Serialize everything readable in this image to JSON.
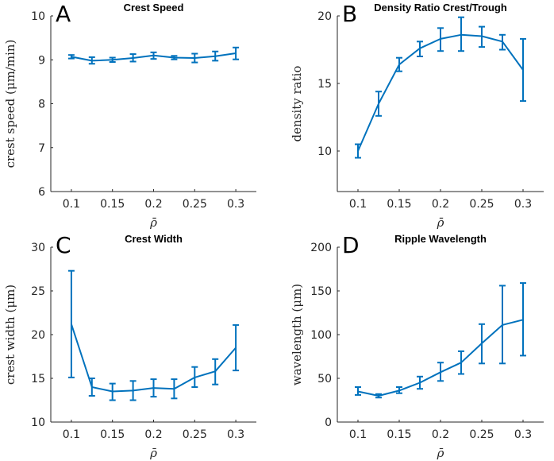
{
  "colors": {
    "series": "#0072BD",
    "axis": "#262626"
  },
  "chart_data": [
    {
      "type": "line",
      "panel_letter": "A",
      "title": "Crest Speed",
      "xlabel": "ρ̄",
      "ylabel": "crest speed (μm/min)",
      "xlim": [
        0.075,
        0.325
      ],
      "ylim": [
        6,
        10
      ],
      "xticks": [
        0.1,
        0.15,
        0.2,
        0.25,
        0.3
      ],
      "xtick_labels": [
        "0.1",
        "0.15",
        "0.2",
        "0.25",
        "0.3"
      ],
      "yticks": [
        6,
        7,
        8,
        9,
        10
      ],
      "ytick_labels": [
        "6",
        "7",
        "8",
        "9",
        "10"
      ],
      "x": [
        0.1,
        0.125,
        0.15,
        0.175,
        0.2,
        0.225,
        0.25,
        0.275,
        0.3
      ],
      "y": [
        9.07,
        8.98,
        9.0,
        9.04,
        9.1,
        9.05,
        9.04,
        9.08,
        9.15
      ],
      "err_low": [
        9.03,
        8.91,
        8.95,
        8.96,
        9.02,
        9.01,
        8.94,
        8.98,
        9.01
      ],
      "err_high": [
        9.11,
        9.06,
        9.05,
        9.13,
        9.17,
        9.09,
        9.14,
        9.19,
        9.28
      ]
    },
    {
      "type": "line",
      "panel_letter": "B",
      "title": "Density Ratio Crest/Trough",
      "xlabel": "ρ̄",
      "ylabel": "density ratio",
      "xlim": [
        0.075,
        0.325
      ],
      "ylim": [
        7,
        20
      ],
      "xticks": [
        0.1,
        0.15,
        0.2,
        0.25,
        0.3
      ],
      "xtick_labels": [
        "0.1",
        "0.15",
        "0.2",
        "0.25",
        "0.3"
      ],
      "yticks": [
        10,
        15,
        20
      ],
      "ytick_labels": [
        "10",
        "15",
        "20"
      ],
      "x": [
        0.1,
        0.125,
        0.15,
        0.175,
        0.2,
        0.225,
        0.25,
        0.275,
        0.3
      ],
      "y": [
        10.0,
        13.5,
        16.4,
        17.6,
        18.3,
        18.6,
        18.5,
        18.1,
        16.0
      ],
      "err_low": [
        9.5,
        12.6,
        15.9,
        17.0,
        17.4,
        17.4,
        17.7,
        17.5,
        13.7
      ],
      "err_high": [
        10.5,
        14.4,
        16.9,
        18.1,
        19.1,
        19.9,
        19.2,
        18.6,
        18.3
      ]
    },
    {
      "type": "line",
      "panel_letter": "C",
      "title": "Crest Width",
      "xlabel": "ρ̄",
      "ylabel": "crest width (μm)",
      "xlim": [
        0.075,
        0.325
      ],
      "ylim": [
        10,
        30
      ],
      "xticks": [
        0.1,
        0.15,
        0.2,
        0.25,
        0.3
      ],
      "xtick_labels": [
        "0.1",
        "0.15",
        "0.2",
        "0.25",
        "0.3"
      ],
      "yticks": [
        10,
        15,
        20,
        25,
        30
      ],
      "ytick_labels": [
        "10",
        "15",
        "20",
        "25",
        "30"
      ],
      "x": [
        0.1,
        0.125,
        0.15,
        0.175,
        0.2,
        0.225,
        0.25,
        0.275,
        0.3
      ],
      "y": [
        21.2,
        14.0,
        13.5,
        13.6,
        13.9,
        13.8,
        15.1,
        15.8,
        18.5
      ],
      "err_low": [
        15.1,
        13.0,
        12.5,
        12.5,
        12.9,
        12.7,
        14.0,
        14.3,
        15.9
      ],
      "err_high": [
        27.3,
        15.0,
        14.4,
        14.7,
        14.9,
        14.9,
        16.3,
        17.2,
        21.1
      ]
    },
    {
      "type": "line",
      "panel_letter": "D",
      "title": "Ripple Wavelength",
      "xlabel": "ρ̄",
      "ylabel": "wavelength (μm)",
      "xlim": [
        0.075,
        0.325
      ],
      "ylim": [
        0,
        200
      ],
      "xticks": [
        0.1,
        0.15,
        0.2,
        0.25,
        0.3
      ],
      "xtick_labels": [
        "0.1",
        "0.15",
        "0.2",
        "0.25",
        "0.3"
      ],
      "yticks": [
        0,
        50,
        100,
        150,
        200
      ],
      "ytick_labels": [
        "0",
        "50",
        "100",
        "150",
        "200"
      ],
      "x": [
        0.1,
        0.125,
        0.15,
        0.175,
        0.2,
        0.225,
        0.25,
        0.275,
        0.3
      ],
      "y": [
        35,
        30,
        36,
        45,
        57,
        68,
        90,
        111,
        117
      ],
      "err_low": [
        31,
        28,
        33,
        38,
        47,
        55,
        67,
        67,
        76
      ],
      "err_high": [
        40,
        32,
        40,
        52,
        68,
        81,
        112,
        156,
        159
      ]
    }
  ]
}
